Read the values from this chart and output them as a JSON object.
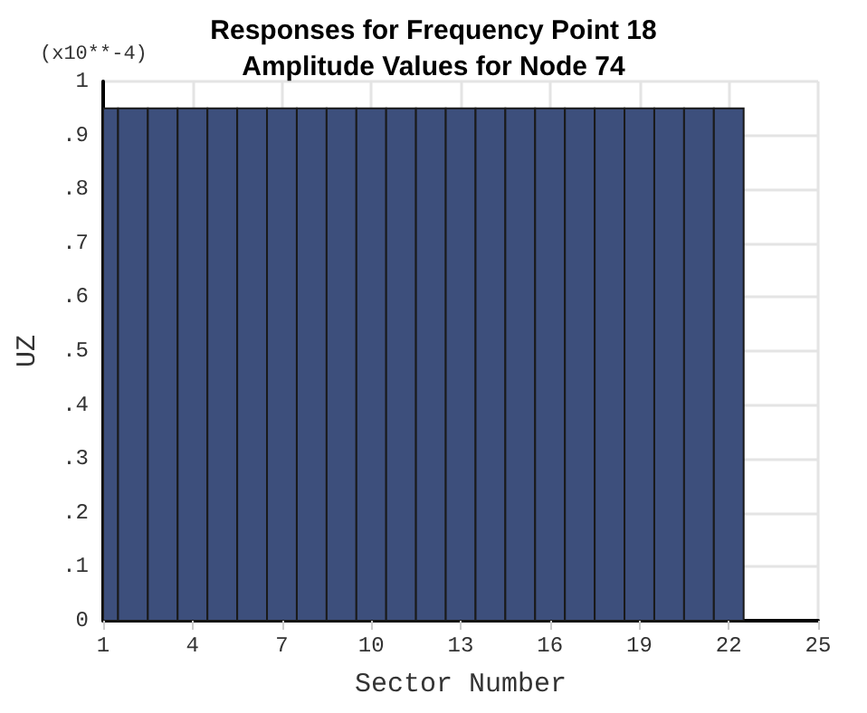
{
  "chart_data": {
    "type": "histogram",
    "title": "Responses for Frequency Point 18\nAmplitude Values for Node 74",
    "xlabel": "Sector Number",
    "ylabel": "UZ",
    "annotations": [
      "(x10**-4)"
    ],
    "bins": [
      1,
      1.5,
      2.5,
      3.5,
      4.5,
      5.5,
      6.5,
      7.5,
      8.5,
      9.5,
      10.5,
      11.5,
      12.5,
      13.5,
      14.5,
      15.5,
      16.5,
      17.5,
      18.5,
      19.5,
      20.5,
      21.5,
      22.5
    ],
    "values": [
      0.95,
      0.95,
      0.95,
      0.95,
      0.95,
      0.95,
      0.95,
      0.95,
      0.95,
      0.95,
      0.95,
      0.95,
      0.95,
      0.95,
      0.95,
      0.95,
      0.95,
      0.95,
      0.95,
      0.95,
      0.95,
      0.95
    ],
    "color": "#3d4f7c",
    "xlim": [
      1,
      25
    ],
    "xticks": [
      1,
      4,
      7,
      10,
      13,
      16,
      19,
      22,
      25
    ],
    "ylim": [
      0,
      1
    ],
    "yticks": [
      0,
      {
        "value": 0.1,
        "label": ".1"
      },
      {
        "value": 0.2,
        "label": ".2"
      },
      {
        "value": 0.3,
        "label": ".3"
      },
      {
        "value": 0.4,
        "label": ".4"
      },
      {
        "value": 0.5,
        "label": ".5"
      },
      {
        "value": 0.6,
        "label": ".6"
      },
      {
        "value": 0.7,
        "label": ".7"
      },
      {
        "value": 0.8,
        "label": ".8"
      },
      {
        "value": 0.9,
        "label": ".9"
      },
      1
    ],
    "grid": true
  }
}
